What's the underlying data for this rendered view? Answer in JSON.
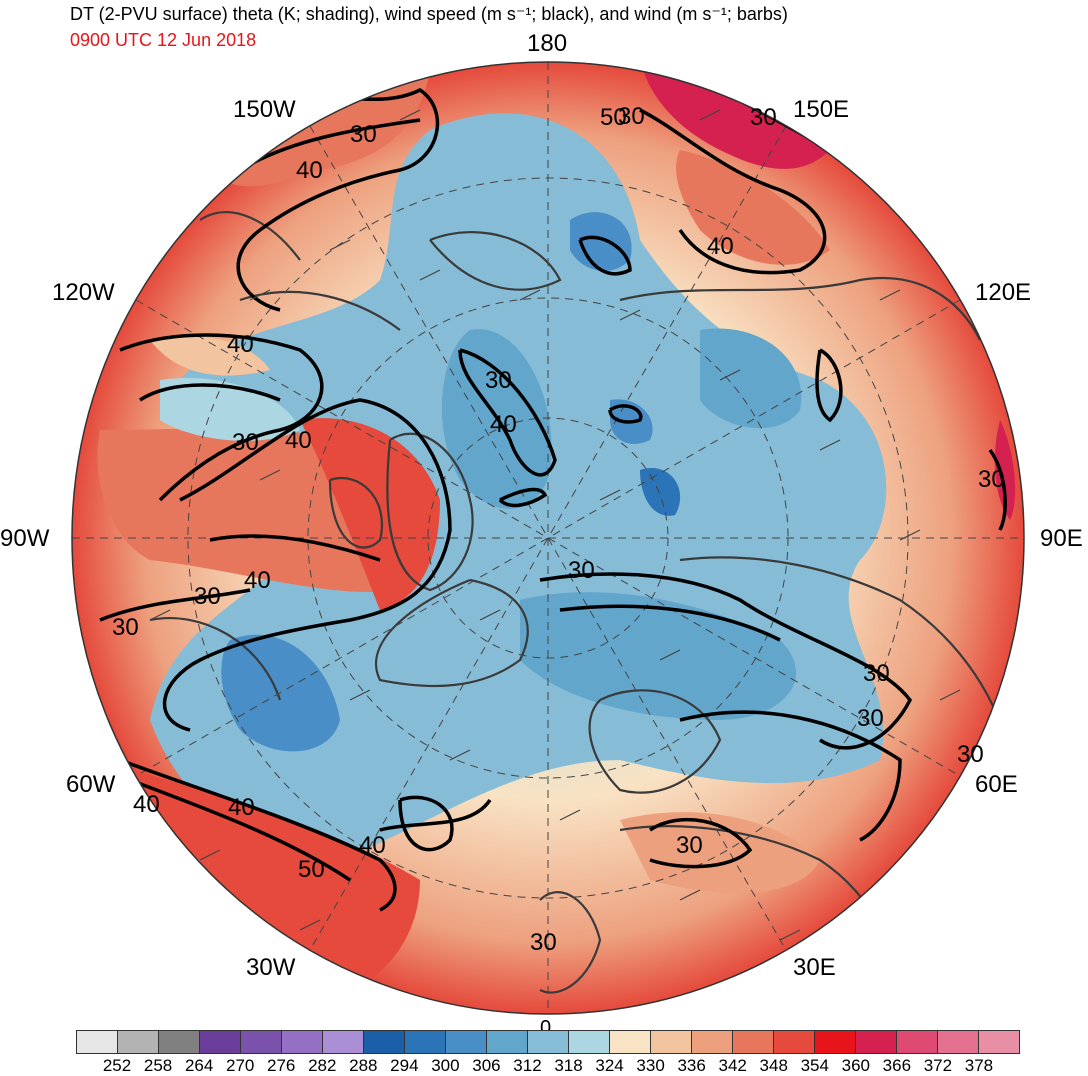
{
  "title": "DT (2-PVU surface) theta (K; shading), wind speed (m s⁻¹; black), and wind (m s⁻¹; barbs)",
  "subtitle": "0900 UTC 12 Jun 2018",
  "colors": {
    "subtitle": "#e8141c",
    "coast": "#3a3a3a",
    "contour": "#000000"
  },
  "longitude_labels": {
    "top": "180",
    "lon150w": "150W",
    "lon150e": "150E",
    "lon120w": "120W",
    "lon120e": "120E",
    "lon90w": "90W",
    "lon90e": "90E",
    "lon60w": "60W",
    "lon60e": "60E",
    "lon30w": "30W",
    "lon30e": "30E",
    "bottom": "0"
  },
  "contour_labels": [
    "30",
    "40",
    "30",
    "40",
    "40",
    "30",
    "40",
    "30",
    "40",
    "30",
    "30",
    "40",
    "30",
    "30",
    "40",
    "50",
    "40",
    "30",
    "30",
    "30",
    "30",
    "30",
    "50",
    "30",
    "40"
  ],
  "colorbar": {
    "colors": [
      "#e6e6e6",
      "#b3b3b3",
      "#808080",
      "#6a3d9a",
      "#7b52ab",
      "#9370c4",
      "#ab8fd6",
      "#1a5fa8",
      "#2c74b8",
      "#4a8ec8",
      "#62a6cc",
      "#86bcd6",
      "#acd6e2",
      "#f8e3c4",
      "#f2c4a0",
      "#eda07e",
      "#e7775c",
      "#e54a3c",
      "#e8141c",
      "#d5214f",
      "#df4a72",
      "#e4708f",
      "#e88fa6"
    ],
    "ticks": [
      "252",
      "258",
      "264",
      "270",
      "276",
      "282",
      "288",
      "294",
      "300",
      "306",
      "312",
      "318",
      "324",
      "330",
      "336",
      "342",
      "348",
      "354",
      "360",
      "366",
      "372",
      "378"
    ]
  }
}
